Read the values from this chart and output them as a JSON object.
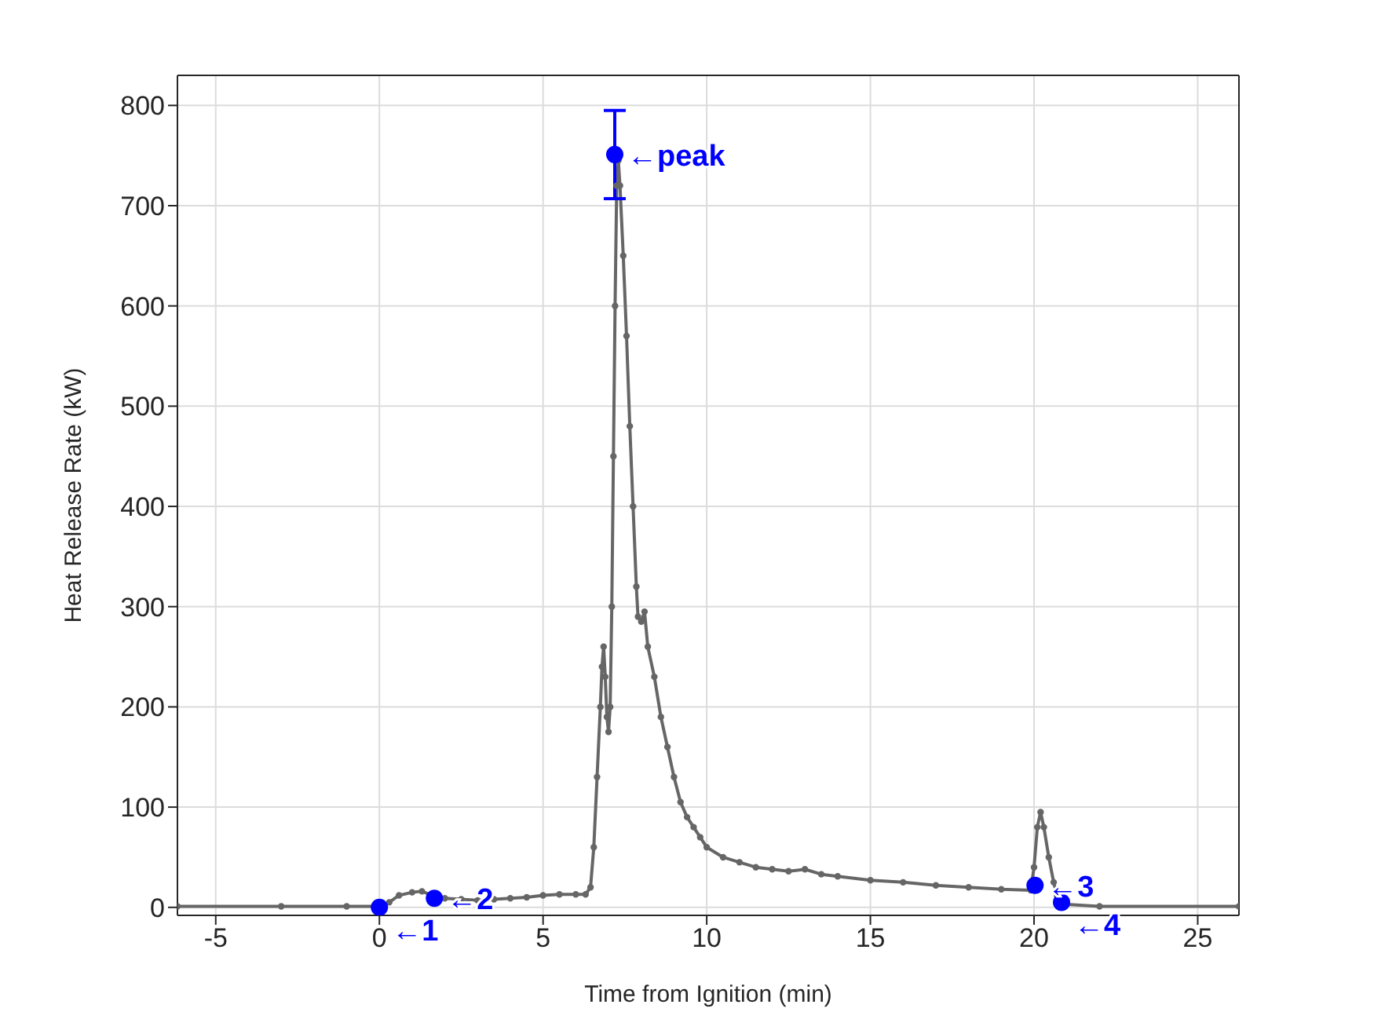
{
  "chart_data": {
    "type": "line",
    "xlabel": "Time from Ignition (min)",
    "ylabel": "Heat Release Rate (kW)",
    "xlim": [
      -6.17,
      26.26
    ],
    "xticks": [
      -5,
      0,
      5,
      10,
      15,
      20,
      25
    ],
    "ylim": [
      -8,
      830
    ],
    "yticks": [
      0,
      100,
      200,
      300,
      400,
      500,
      600,
      700,
      800
    ],
    "grid": true,
    "legend": false,
    "series": [
      {
        "color": "#666666",
        "marker": "circle",
        "x": [
          -6.17,
          -3,
          -1,
          0,
          0.3,
          0.6,
          1.0,
          1.3,
          1.6,
          2.0,
          2.5,
          3.0,
          3.5,
          4.0,
          4.5,
          5.0,
          5.5,
          6.0,
          6.3,
          6.45,
          6.55,
          6.65,
          6.75,
          6.8,
          6.85,
          6.9,
          6.95,
          7.0,
          7.05,
          7.1,
          7.15,
          7.2,
          7.25,
          7.3,
          7.35,
          7.45,
          7.55,
          7.65,
          7.75,
          7.85,
          7.9,
          8.0,
          8.1,
          8.2,
          8.4,
          8.6,
          8.8,
          9.0,
          9.2,
          9.4,
          9.6,
          9.8,
          10,
          10.5,
          11,
          11.5,
          12,
          12.5,
          13,
          13.5,
          14,
          15,
          16,
          17,
          18,
          19,
          19.9,
          20.0,
          20.1,
          20.2,
          20.3,
          20.45,
          20.6,
          20.7,
          21,
          22,
          26.26
        ],
        "values": [
          1,
          1,
          1,
          1,
          5,
          12,
          15,
          16,
          12,
          9,
          8,
          7,
          8,
          9,
          10,
          12,
          13,
          13,
          13,
          20,
          60,
          130,
          200,
          240,
          260,
          230,
          190,
          175,
          200,
          300,
          450,
          600,
          720,
          745,
          720,
          650,
          570,
          480,
          400,
          320,
          290,
          285,
          295,
          260,
          230,
          190,
          160,
          130,
          105,
          90,
          80,
          70,
          60,
          50,
          45,
          40,
          38,
          36,
          38,
          33,
          31,
          27,
          25,
          22,
          20,
          18,
          17,
          40,
          80,
          95,
          80,
          50,
          25,
          12,
          3,
          1,
          1
        ]
      },
      {
        "type": "scatter",
        "color": "#0000ff",
        "marker": "circle",
        "x": [
          0,
          1.68,
          7.19,
          20.03,
          20.84
        ],
        "values": [
          0,
          9,
          751,
          22,
          5
        ],
        "errors": [
          null,
          null,
          44,
          null,
          null
        ]
      }
    ],
    "annotations": [
      {
        "text": "←1",
        "x": 0,
        "y": 0
      },
      {
        "text": "←2",
        "x": 1.68,
        "y": 9
      },
      {
        "text": "←peak",
        "x": 7.19,
        "y": 751
      },
      {
        "text": "←3",
        "x": 20.03,
        "y": 22
      },
      {
        "text": "←4",
        "x": 20.84,
        "y": 5
      }
    ]
  }
}
